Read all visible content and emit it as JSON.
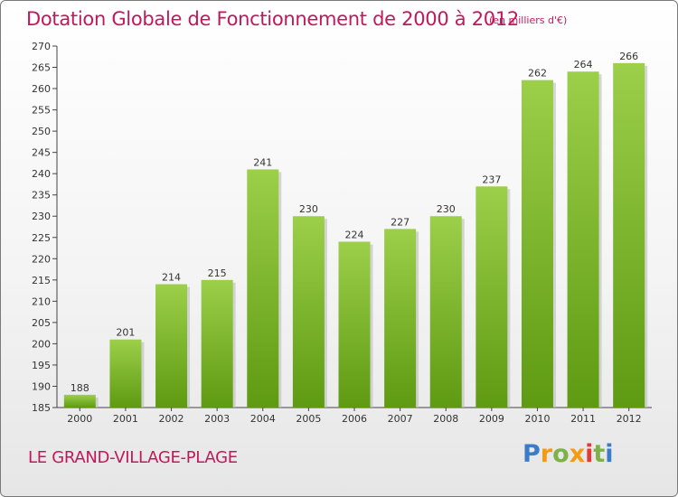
{
  "header": {
    "title": "Dotation Globale de Fonctionnement de 2000 à 2012",
    "subtitle": "(en milliers d'€)"
  },
  "footer": {
    "place": "LE GRAND-VILLAGE-PLAGE",
    "logo": "Proxiti"
  },
  "colors": {
    "accent": "#c2185b",
    "bar_top": "#9ccf4a",
    "bar_bottom": "#5e9a12"
  },
  "chart_data": {
    "type": "bar",
    "title": "Dotation Globale de Fonctionnement de 2000 à 2012",
    "subtitle": "(en milliers d'€)",
    "xlabel": "",
    "ylabel": "",
    "categories": [
      "2000",
      "2001",
      "2002",
      "2003",
      "2004",
      "2005",
      "2006",
      "2007",
      "2008",
      "2009",
      "2010",
      "2011",
      "2012"
    ],
    "values": [
      188,
      201,
      214,
      215,
      241,
      230,
      224,
      227,
      230,
      237,
      262,
      264,
      266
    ],
    "ylim": [
      185,
      270
    ],
    "yticks": [
      185,
      190,
      195,
      200,
      205,
      210,
      215,
      220,
      225,
      230,
      235,
      240,
      245,
      250,
      255,
      260,
      265,
      270
    ],
    "grid": false,
    "legend": "none",
    "data_labels": true
  }
}
